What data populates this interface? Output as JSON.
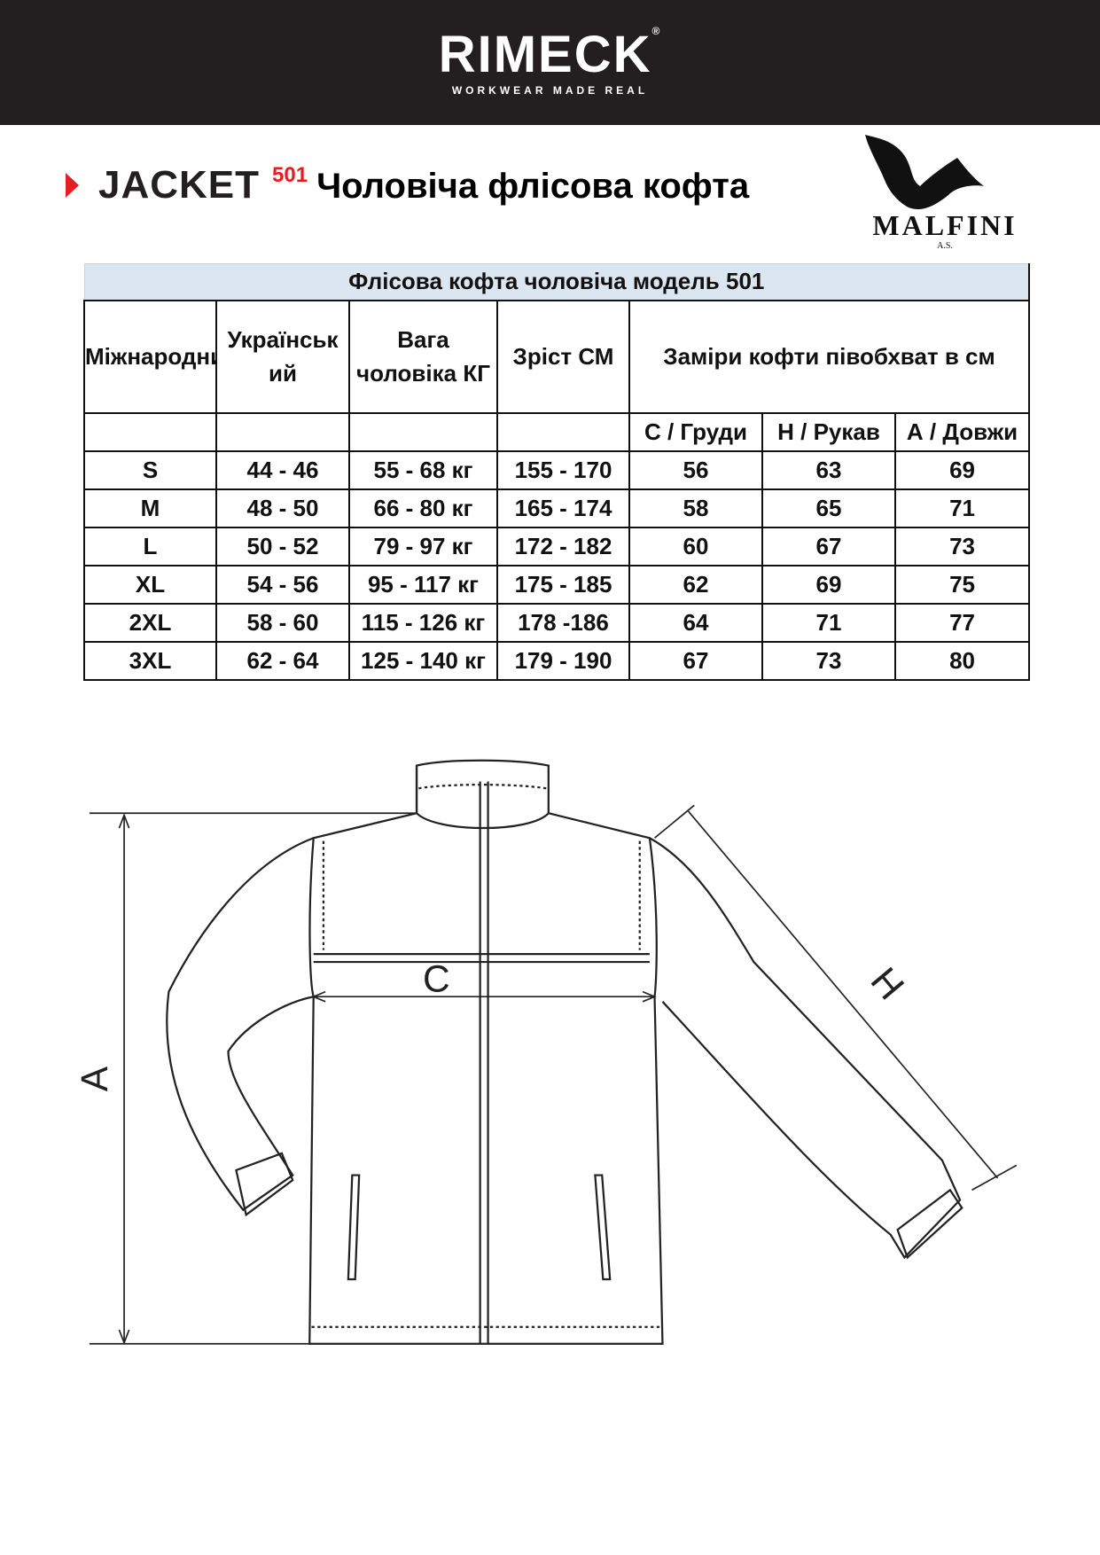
{
  "header": {
    "brand": "RIMECK",
    "registered": "®",
    "tagline": "WORKWEAR MADE REAL",
    "colors": {
      "background": "#231f20",
      "accent": "#e31e24"
    }
  },
  "title": {
    "product": "JACKET",
    "model": "501",
    "description": "Чоловіча флісова кофта"
  },
  "partner_logo": {
    "name": "MALFINI",
    "suffix": "A.S."
  },
  "table": {
    "caption": "Флісова кофта чоловіча модель 501",
    "headers": [
      "Міжнародний",
      "Українськ ий",
      "Вага чоловіка КГ",
      "Зріст СМ",
      "Заміри кофти півобхват в см"
    ],
    "subheaders": [
      "С / Груди",
      "Н / Рукав",
      "А / Довжи"
    ],
    "rows": [
      [
        "S",
        "44 - 46",
        "55 - 68 кг",
        "155 - 170",
        "56",
        "63",
        "69"
      ],
      [
        "M",
        "48 - 50",
        "66 - 80 кг",
        "165 - 174",
        "58",
        "65",
        "71"
      ],
      [
        "L",
        "50 - 52",
        "79 - 97 кг",
        "172 - 182",
        "60",
        "67",
        "73"
      ],
      [
        "XL",
        "54 - 56",
        "95 - 117 кг",
        "175 - 185",
        "62",
        "69",
        "75"
      ],
      [
        "2XL",
        "58 - 60",
        "115 - 126 кг",
        "178 -186",
        "64",
        "71",
        "77"
      ],
      [
        "3XL",
        "62 - 64",
        "125 - 140 кг",
        "179 - 190",
        "67",
        "73",
        "80"
      ]
    ]
  },
  "diagram": {
    "labels": {
      "length": "A",
      "chest": "C",
      "sleeve": "H"
    }
  }
}
